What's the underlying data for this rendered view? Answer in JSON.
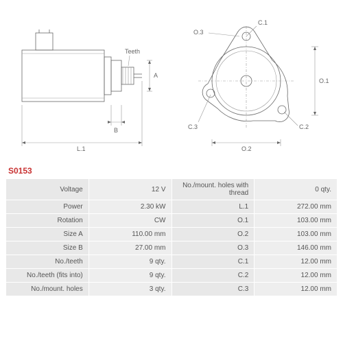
{
  "part_id": "S0153",
  "diagram": {
    "side_labels": {
      "L1": "L.1",
      "B": "B",
      "Teeth": "Teeth",
      "A": "A"
    },
    "front_labels": {
      "O1": "O.1",
      "O2": "O.2",
      "O3": "O.3",
      "C1": "C.1",
      "C2": "C.2",
      "C3": "C.3"
    },
    "colors": {
      "line": "#666666",
      "thin": "#999999",
      "accent": "#c83232",
      "bg": "#ffffff"
    }
  },
  "specs_left": [
    {
      "label": "Voltage",
      "value": "12 V"
    },
    {
      "label": "Power",
      "value": "2.30 kW"
    },
    {
      "label": "Rotation",
      "value": "CW"
    },
    {
      "label": "Size A",
      "value": "110.00 mm"
    },
    {
      "label": "Size B",
      "value": "27.00 mm"
    },
    {
      "label": "No./teeth",
      "value": "9 qty."
    },
    {
      "label": "No./teeth (fits into)",
      "value": "9 qty."
    },
    {
      "label": "No./mount. holes",
      "value": "3 qty."
    }
  ],
  "specs_right": [
    {
      "label": "No./mount. holes with thread",
      "value": "0 qty."
    },
    {
      "label": "L.1",
      "value": "272.00 mm"
    },
    {
      "label": "O.1",
      "value": "103.00 mm"
    },
    {
      "label": "O.2",
      "value": "103.00 mm"
    },
    {
      "label": "O.3",
      "value": "146.00 mm"
    },
    {
      "label": "C.1",
      "value": "12.00 mm"
    },
    {
      "label": "C.2",
      "value": "12.00 mm"
    },
    {
      "label": "C.3",
      "value": "12.00 mm"
    }
  ]
}
